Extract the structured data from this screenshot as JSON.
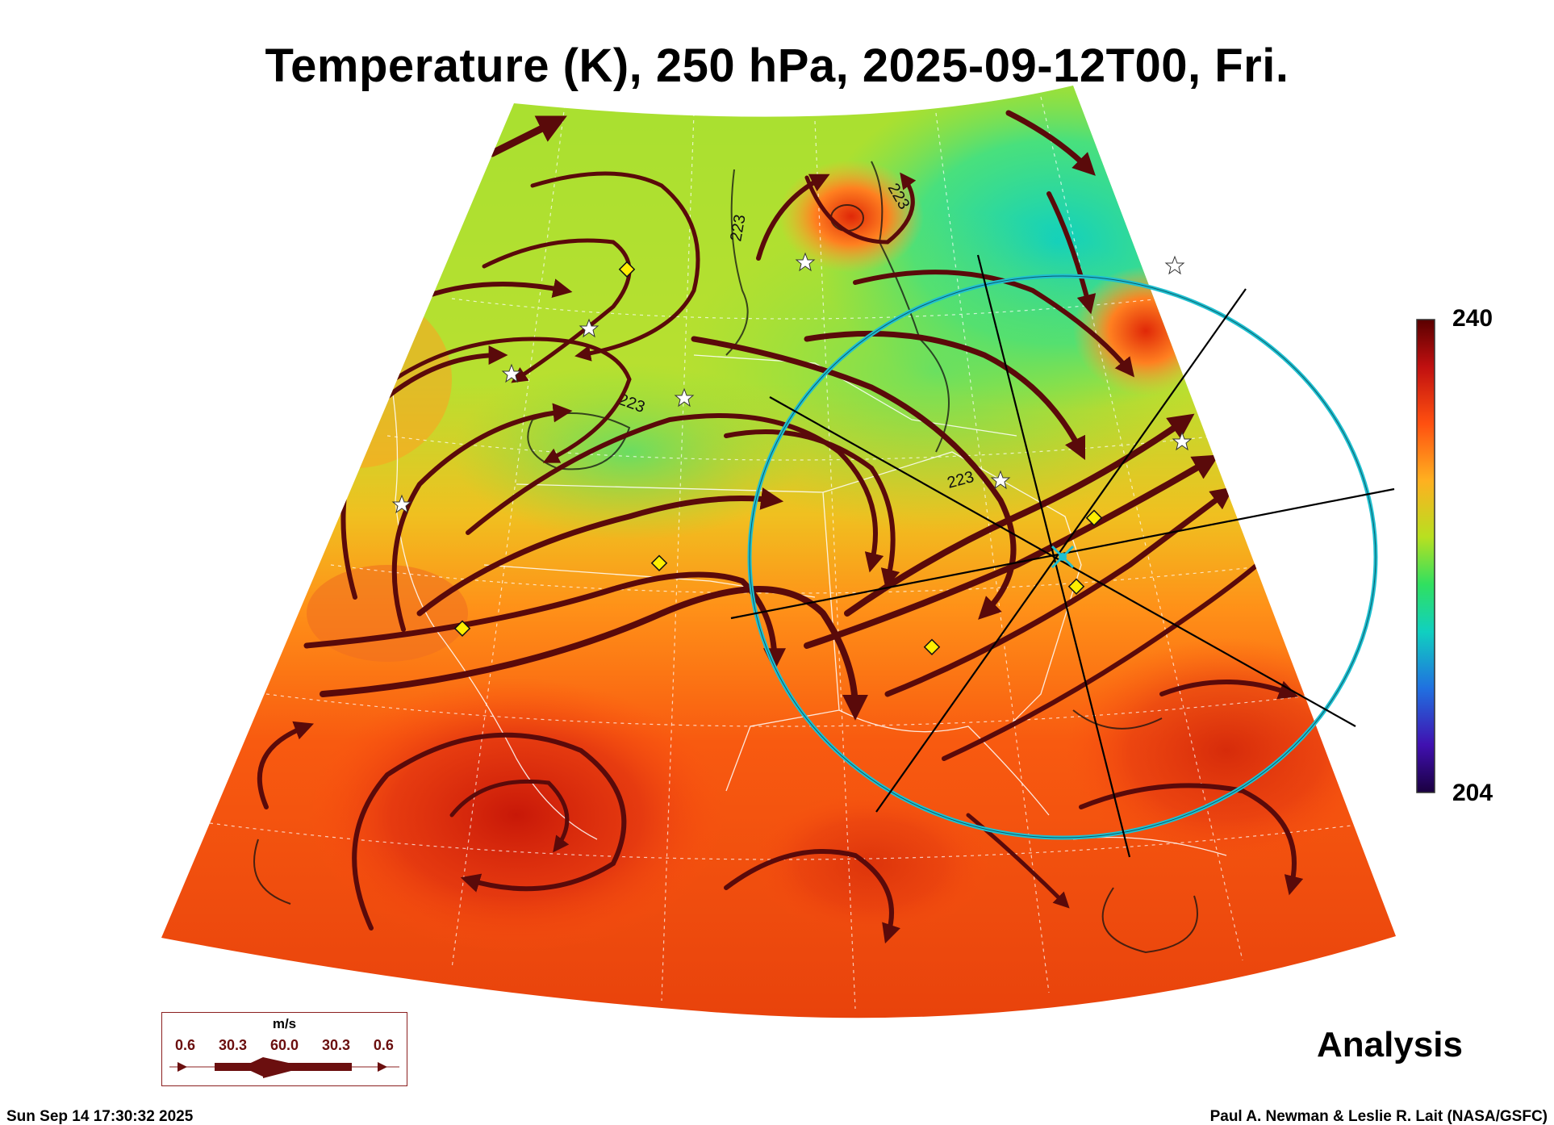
{
  "title": "Temperature (K), 250 hPa, 2025-09-12T00, Fri.",
  "colorbar": {
    "max_label": "240",
    "min_label": "204",
    "stops": [
      "#ffffff",
      "#7a0a0a",
      "#d8200c",
      "#ff7a10",
      "#ffc820",
      "#9fe020",
      "#20e070",
      "#10c0d0",
      "#2070e0",
      "#3010a0",
      "#1a0040"
    ]
  },
  "contour_labels": [
    "223",
    "223",
    "223",
    "223"
  ],
  "wind_legend": {
    "unit": "m/s",
    "values": [
      "0.6",
      "30.3",
      "60.0",
      "30.3",
      "0.6"
    ]
  },
  "panel_label": "Analysis",
  "footer": {
    "timestamp": "Sun Sep 14 17:30:32 2025",
    "credit": "Paul A. Newman & Leslie R. Lait (NASA/GSFC)"
  },
  "colors": {
    "streamline": "#5a0a0a",
    "circle": "#20c0d0",
    "marker_diamond": "#ffee00",
    "marker_star": "#ffffff"
  }
}
